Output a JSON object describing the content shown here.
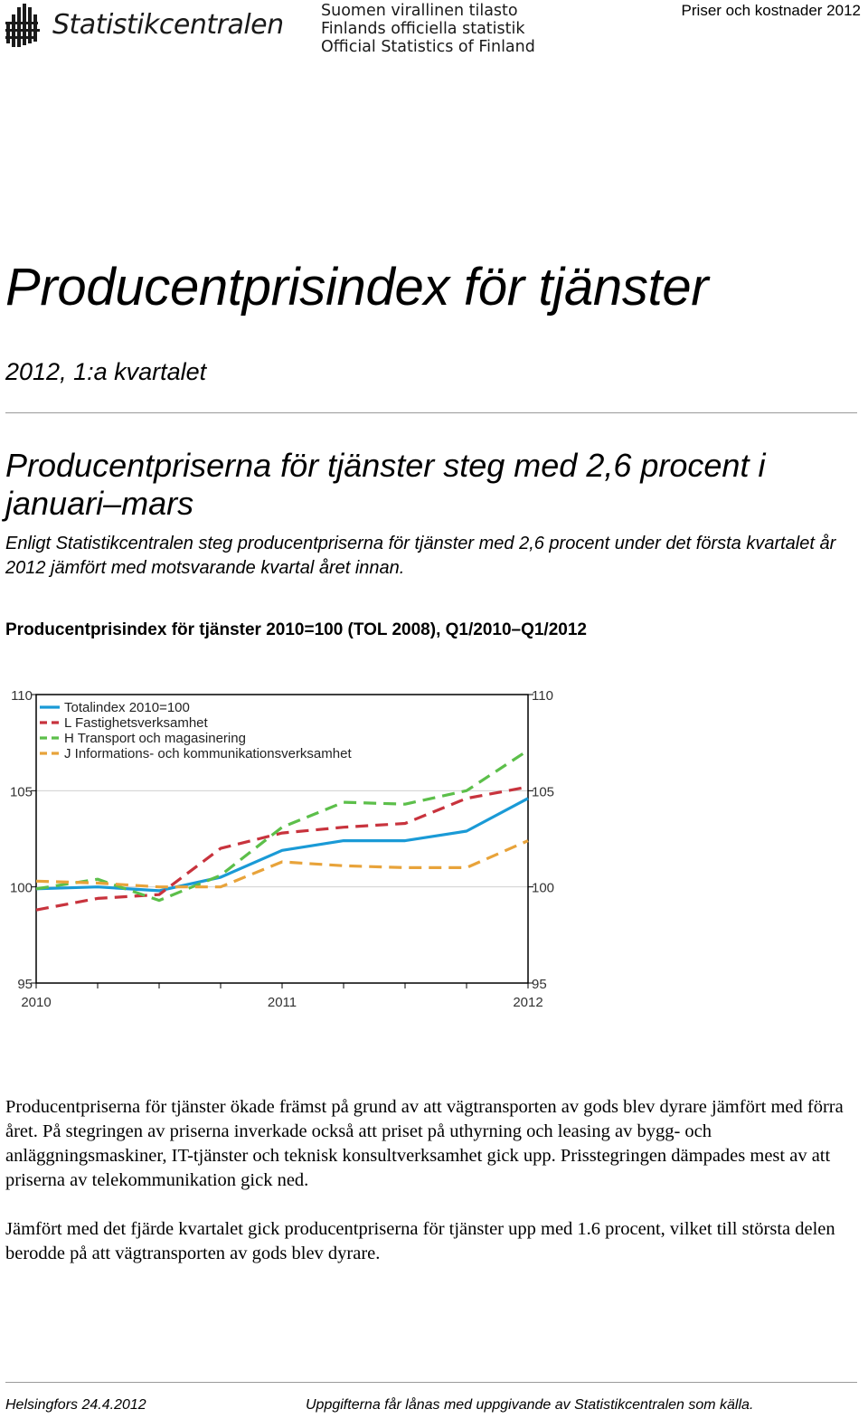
{
  "header": {
    "logo_text": "Statistikcentralen",
    "official_lines": [
      "Suomen virallinen tilasto",
      "Finlands officiella statistik",
      "Official Statistics of Finland"
    ],
    "series_label": "Priser och kostnader 2012"
  },
  "title": "Producentprisindex för tjänster",
  "period": "2012, 1:a kvartalet",
  "headline": "Producentpriserna för tjänster steg med 2,6 procent i januari–mars",
  "lead": "Enligt Statistikcentralen steg producentpriserna för tjänster med 2,6 procent under det första kvartalet år 2012 jämfört med motsvarande kvartal året innan.",
  "chart_title": "Producentprisindex för tjänster 2010=100 (TOL 2008), Q1/2010–Q1/2012",
  "chart_data": {
    "type": "line",
    "title": "Producentprisindex för tjänster 2010=100 (TOL 2008), Q1/2010–Q1/2012",
    "x": [
      "Q1/2010",
      "Q2/2010",
      "Q3/2010",
      "Q4/2010",
      "Q1/2011",
      "Q2/2011",
      "Q3/2011",
      "Q4/2011",
      "Q1/2012"
    ],
    "x_tick_labels": [
      "2010",
      "2011",
      "2012"
    ],
    "x_tick_positions": [
      0,
      4,
      8
    ],
    "ylim": [
      95,
      110
    ],
    "y_ticks": [
      95,
      100,
      105,
      110
    ],
    "grid": true,
    "legend_position": "top-left",
    "series": [
      {
        "name": "Totalindex 2010=100",
        "color": "#1a9ad6",
        "dash": "solid",
        "values": [
          99.9,
          100.0,
          99.8,
          100.5,
          101.9,
          102.4,
          102.4,
          102.9,
          104.6
        ]
      },
      {
        "name": "L Fastighetsverksamhet",
        "color": "#c8333d",
        "dash": "dashed",
        "values": [
          98.8,
          99.4,
          99.6,
          102.0,
          102.8,
          103.1,
          103.3,
          104.6,
          105.2
        ]
      },
      {
        "name": "H Transport och magasinering",
        "color": "#5cbf4a",
        "dash": "dashed",
        "values": [
          99.9,
          100.4,
          99.3,
          100.6,
          103.1,
          104.4,
          104.3,
          105.0,
          107.1
        ]
      },
      {
        "name": "J Informations- och kommunikationsverksamhet",
        "color": "#e8a33a",
        "dash": "dashed",
        "values": [
          100.3,
          100.2,
          100.0,
          100.0,
          101.3,
          101.1,
          101.0,
          101.0,
          102.4
        ]
      }
    ]
  },
  "paragraphs": [
    "Producentpriserna för tjänster ökade främst på grund av att vägtransporten av gods blev dyrare jämfört med förra året. På stegringen av priserna inverkade också att priset på uthyrning och leasing av bygg- och anläggningsmaskiner, IT-tjänster och teknisk konsultverksamhet gick upp. Prisstegringen dämpades mest av att priserna av telekommunikation gick ned.",
    "Jämfört med det fjärde kvartalet gick producentpriserna för tjänster upp med 1.6 procent, vilket till största delen berodde på att vägtransporten av gods blev dyrare."
  ],
  "footer": {
    "place_date": "Helsingfors 24.4.2012",
    "note": "Uppgifterna får lånas med uppgivande av Statistikcentralen som källa."
  }
}
